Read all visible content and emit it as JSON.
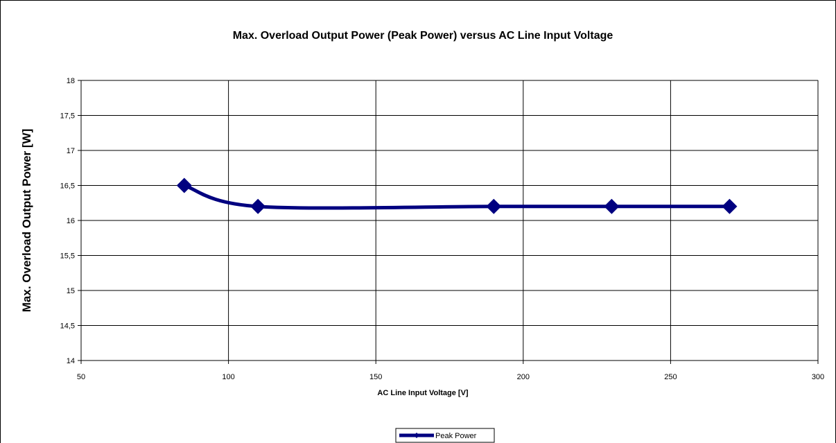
{
  "chart_data": {
    "type": "line",
    "title": "Max. Overload Output Power (Peak Power) versus AC Line Input Voltage",
    "xlabel": "AC Line Input Voltage [V]",
    "ylabel": "Max. Overload Output Power [W]",
    "series": [
      {
        "name": "Peak Power",
        "color": "#000080",
        "x": [
          85,
          110,
          190,
          230,
          270
        ],
        "values": [
          16.5,
          16.2,
          16.2,
          16.2,
          16.2
        ]
      }
    ],
    "xlim": [
      50,
      300
    ],
    "xticks": [
      50,
      100,
      150,
      200,
      250,
      300
    ],
    "ylim": [
      14,
      18
    ],
    "yticks": [
      14,
      {
        "value": 14.5,
        "label": "14,5"
      },
      15,
      {
        "value": 15.5,
        "label": "15,5"
      },
      16,
      {
        "value": 16.5,
        "label": "16,5"
      },
      17,
      {
        "value": 17.5,
        "label": "17,5"
      },
      18
    ],
    "grid": true,
    "smooth": true,
    "legend": "bottom"
  }
}
